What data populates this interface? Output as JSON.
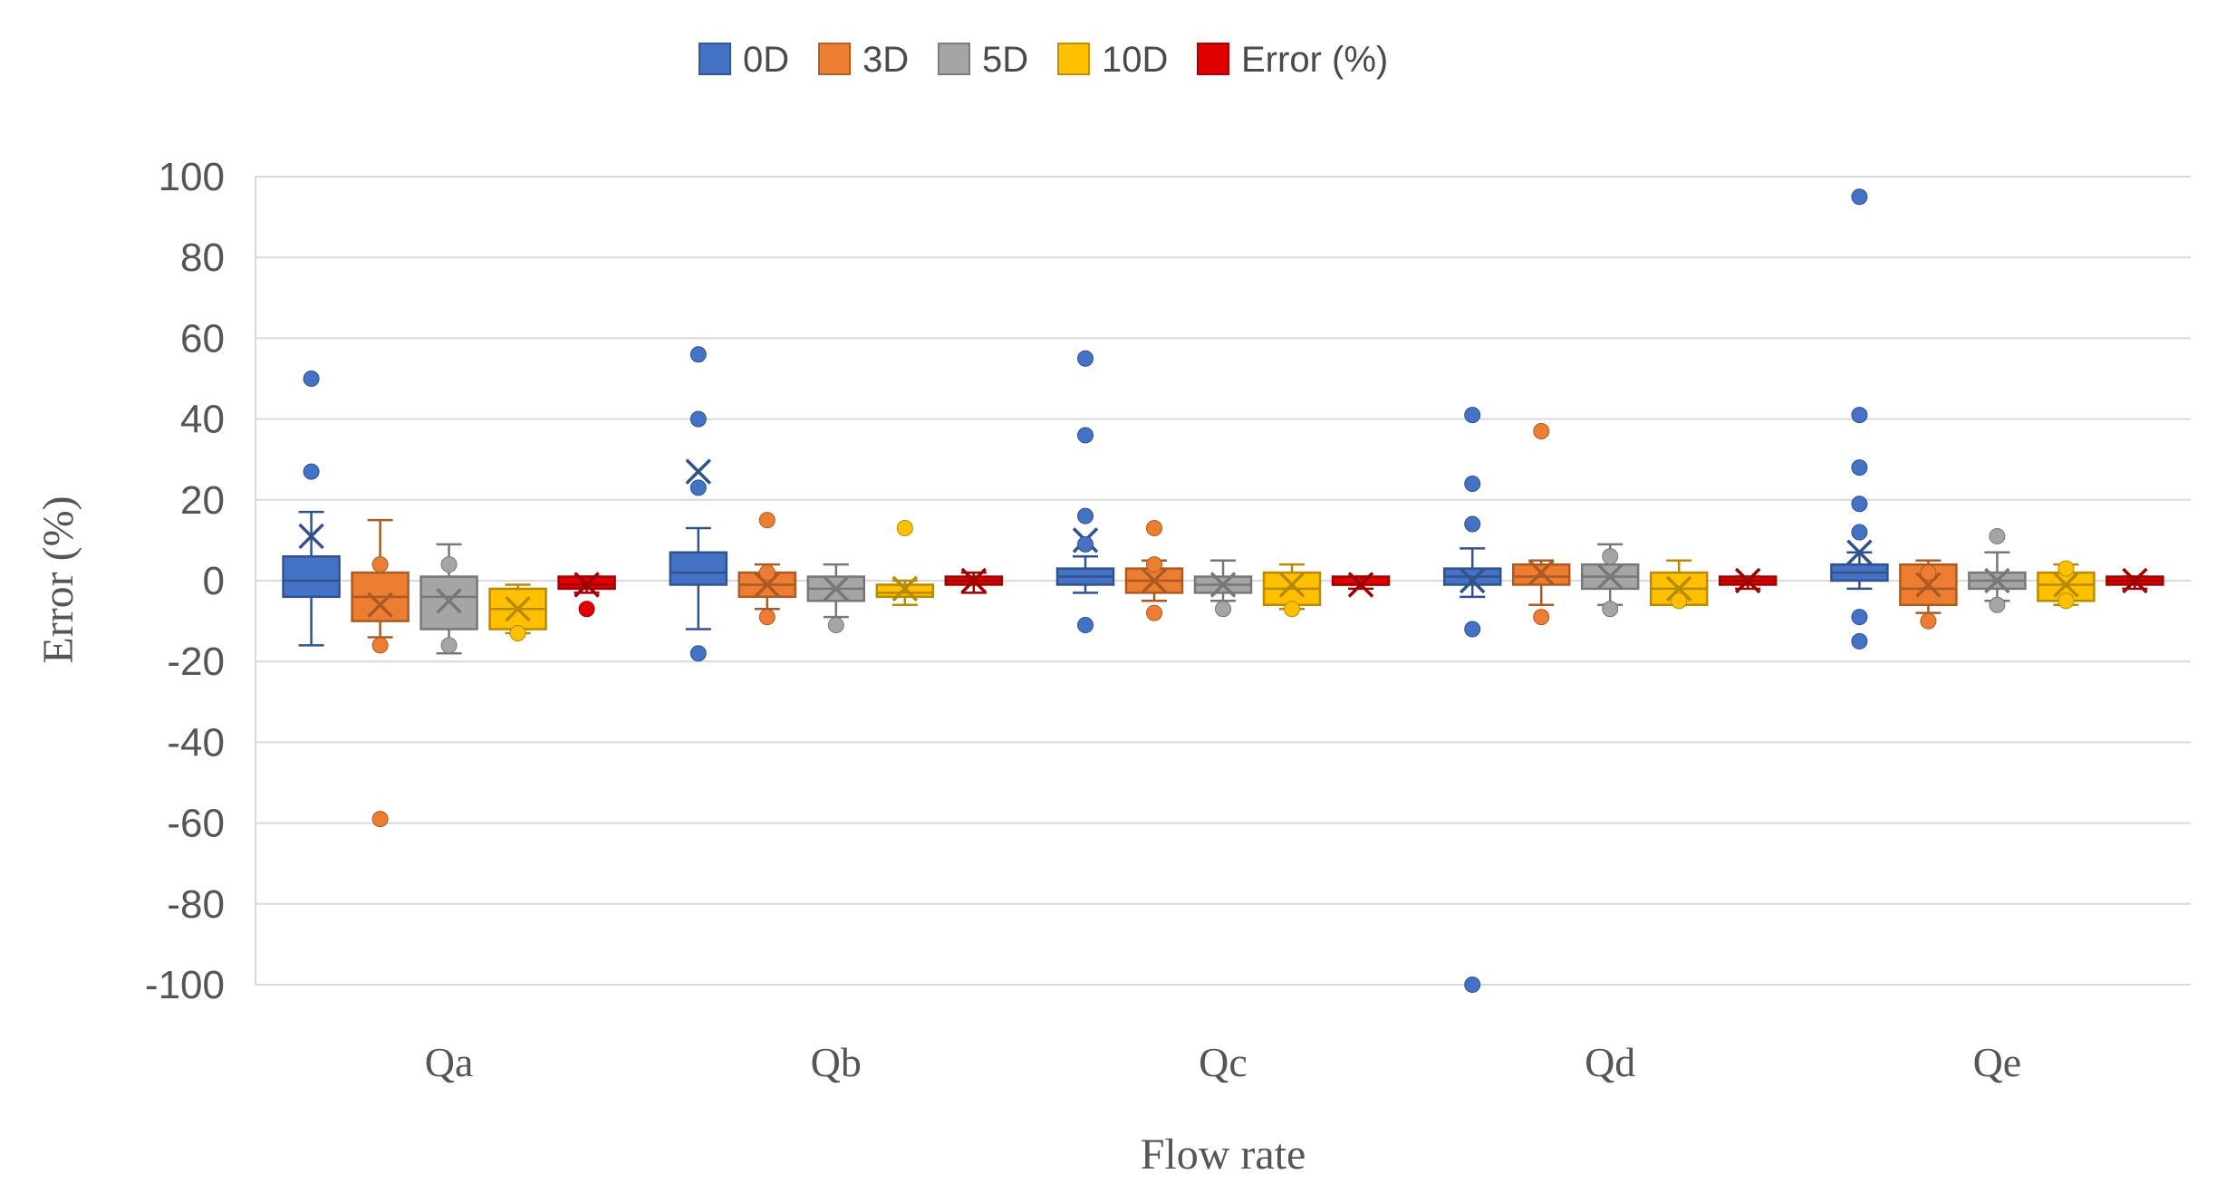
{
  "chart_data": {
    "type": "box",
    "title": "",
    "xlabel": "Flow rate",
    "ylabel": "Error (%)",
    "ylim": [
      -100,
      100
    ],
    "yticks": [
      100,
      80,
      60,
      40,
      20,
      0,
      -20,
      -40,
      -60,
      -80,
      -100
    ],
    "categories": [
      "Qa",
      "Qb",
      "Qc",
      "Qd",
      "Qe"
    ],
    "legend_position": "top-center",
    "series": [
      {
        "name": "0D",
        "color": "#4472C4",
        "stats": [
          {
            "min": -16,
            "q1": -4,
            "median": 0,
            "q3": 6,
            "max": 17,
            "mean": 11,
            "outliers": [
              50,
              27
            ]
          },
          {
            "min": -12,
            "q1": -1,
            "median": 2,
            "q3": 7,
            "max": 13,
            "mean": 27,
            "outliers": [
              56,
              40,
              23,
              -18
            ]
          },
          {
            "min": -3,
            "q1": -1,
            "median": 1,
            "q3": 3,
            "max": 6,
            "mean": 10,
            "outliers": [
              55,
              36,
              16,
              9,
              -11
            ]
          },
          {
            "min": -4,
            "q1": -1,
            "median": 1,
            "q3": 3,
            "max": 8,
            "mean": 0,
            "outliers": [
              41,
              24,
              14,
              -12,
              -100
            ]
          },
          {
            "min": -2,
            "q1": 0,
            "median": 2,
            "q3": 4,
            "max": 7,
            "mean": 7,
            "outliers": [
              95,
              41,
              28,
              19,
              12,
              -9,
              -15
            ]
          }
        ]
      },
      {
        "name": "3D",
        "color": "#ED7D31",
        "stats": [
          {
            "min": -14,
            "q1": -10,
            "median": -4,
            "q3": 2,
            "max": 15,
            "mean": -6,
            "outliers": [
              4,
              -16,
              -59
            ]
          },
          {
            "min": -7,
            "q1": -4,
            "median": -1,
            "q3": 2,
            "max": 4,
            "mean": -1,
            "outliers": [
              15,
              2,
              -9
            ]
          },
          {
            "min": -5,
            "q1": -3,
            "median": 0,
            "q3": 3,
            "max": 5,
            "mean": 0,
            "outliers": [
              13,
              4,
              -8
            ]
          },
          {
            "min": -6,
            "q1": -1,
            "median": 1,
            "q3": 4,
            "max": 5,
            "mean": 2,
            "outliers": [
              37,
              -9
            ]
          },
          {
            "min": -8,
            "q1": -6,
            "median": -2,
            "q3": 4,
            "max": 5,
            "mean": -1,
            "outliers": [
              2,
              -10
            ]
          }
        ]
      },
      {
        "name": "5D",
        "color": "#A5A5A5",
        "stats": [
          {
            "min": -18,
            "q1": -12,
            "median": -4,
            "q3": 1,
            "max": 9,
            "mean": -5,
            "outliers": [
              4,
              -16
            ]
          },
          {
            "min": -9,
            "q1": -5,
            "median": -2,
            "q3": 1,
            "max": 4,
            "mean": -2,
            "outliers": [
              -11
            ]
          },
          {
            "min": -5,
            "q1": -3,
            "median": -1,
            "q3": 1,
            "max": 5,
            "mean": -1,
            "outliers": [
              -7
            ]
          },
          {
            "min": -6,
            "q1": -2,
            "median": 1,
            "q3": 4,
            "max": 9,
            "mean": 1,
            "outliers": [
              6,
              -7
            ]
          },
          {
            "min": -5,
            "q1": -2,
            "median": 0,
            "q3": 2,
            "max": 7,
            "mean": 0,
            "outliers": [
              11,
              -6
            ]
          }
        ]
      },
      {
        "name": "10D",
        "color": "#FFC000",
        "stats": [
          {
            "min": -13,
            "q1": -12,
            "median": -7,
            "q3": -2,
            "max": -1,
            "mean": -7,
            "outliers": [
              -13
            ]
          },
          {
            "min": -6,
            "q1": -4,
            "median": -3,
            "q3": -1,
            "max": 0,
            "mean": -2,
            "outliers": [
              13
            ]
          },
          {
            "min": -7,
            "q1": -6,
            "median": -2,
            "q3": 2,
            "max": 4,
            "mean": -1,
            "outliers": [
              -7
            ]
          },
          {
            "min": -6,
            "q1": -6,
            "median": -2,
            "q3": 2,
            "max": 5,
            "mean": -2,
            "outliers": [
              -5
            ]
          },
          {
            "min": -6,
            "q1": -5,
            "median": -1,
            "q3": 2,
            "max": 4,
            "mean": -1,
            "outliers": [
              3,
              -5
            ]
          }
        ]
      },
      {
        "name": "Error (%)",
        "color": "#E00000",
        "stats": [
          {
            "min": -3,
            "q1": -2,
            "median": -1,
            "q3": 1,
            "max": 1,
            "mean": -1,
            "outliers": [
              -7
            ]
          },
          {
            "min": -3,
            "q1": -1,
            "median": 0,
            "q3": 1,
            "max": 2,
            "mean": 0,
            "outliers": []
          },
          {
            "min": -2,
            "q1": -1,
            "median": -1,
            "q3": 1,
            "max": 1,
            "mean": -1,
            "outliers": []
          },
          {
            "min": -2,
            "q1": -1,
            "median": 0,
            "q3": 1,
            "max": 1,
            "mean": 0,
            "outliers": []
          },
          {
            "min": -2,
            "q1": -1,
            "median": 0,
            "q3": 1,
            "max": 1,
            "mean": 0,
            "outliers": []
          }
        ]
      }
    ]
  }
}
